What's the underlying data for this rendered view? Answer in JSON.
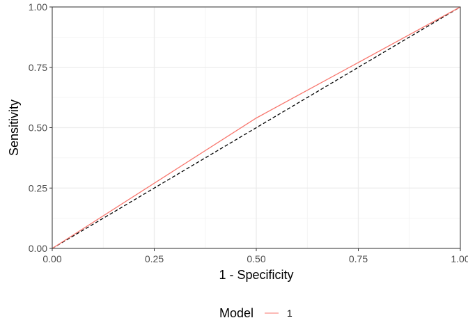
{
  "chart_data": {
    "type": "line",
    "xlabel": "1 - Specificity",
    "ylabel": "Sensitivity",
    "xlim": [
      0,
      1
    ],
    "ylim": [
      0,
      1
    ],
    "x_ticks": [
      0,
      0.25,
      0.5,
      0.75,
      1
    ],
    "x_tick_labels": [
      "0.00",
      "0.25",
      "0.50",
      "0.75",
      "1.00"
    ],
    "y_ticks": [
      0,
      0.25,
      0.5,
      0.75,
      1
    ],
    "y_tick_labels": [
      "0.00",
      "0.25",
      "0.50",
      "0.75",
      "1.00"
    ],
    "grid": true,
    "legend": {
      "title": "Model",
      "placement": "bottom"
    },
    "series": [
      {
        "name": "1",
        "color": "#f8766d",
        "x": [
          0,
          0.5,
          1
        ],
        "y": [
          0,
          0.54,
          1
        ]
      }
    ],
    "reference_line": {
      "style": "dashed",
      "color": "#000000",
      "x": [
        0,
        1
      ],
      "y": [
        0,
        1
      ]
    }
  }
}
